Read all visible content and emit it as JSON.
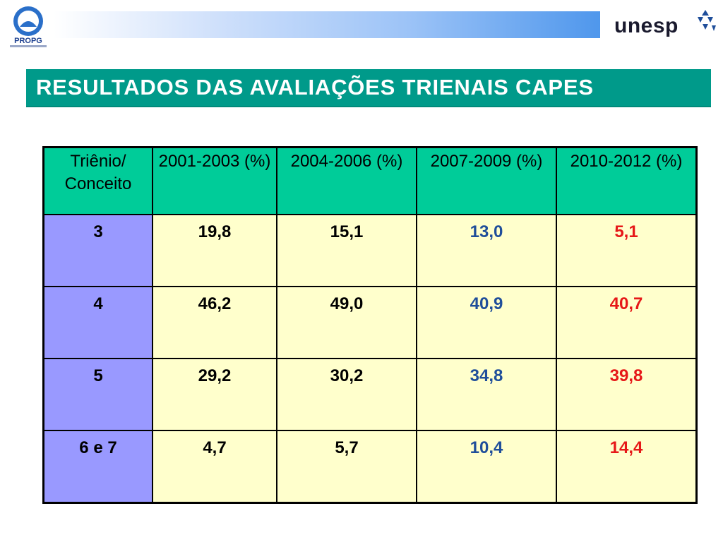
{
  "header": {
    "left_logo_text": "PROPG",
    "right_logo_text": "unesp"
  },
  "slide": {
    "title": "RESULTADOS DAS AVALIAÇÕES TRIENAIS CAPES"
  },
  "table": {
    "columns": [
      "Triênio/ Conceito",
      "2001-2003 (%)",
      "2004-2006 (%)",
      "2007-2009 (%)",
      "2010-2012 (%)"
    ],
    "rows": [
      [
        "3",
        "19,8",
        "15,1",
        "13,0",
        "5,1"
      ],
      [
        "4",
        "46,2",
        "49,0",
        "40,9",
        "40,7"
      ],
      [
        "5",
        "29,2",
        "30,2",
        "34,8",
        "39,8"
      ],
      [
        "6 e 7",
        "4,7",
        "5,7",
        "10,4",
        "14,4"
      ]
    ]
  },
  "colors": {
    "title_bg": "#009a8a",
    "header_bg": "#00cc99",
    "rowhead_bg": "#9999ff",
    "cell_bg": "#ffffcc",
    "col3_text": "#1f4e9a",
    "col4_text": "#e61818"
  }
}
